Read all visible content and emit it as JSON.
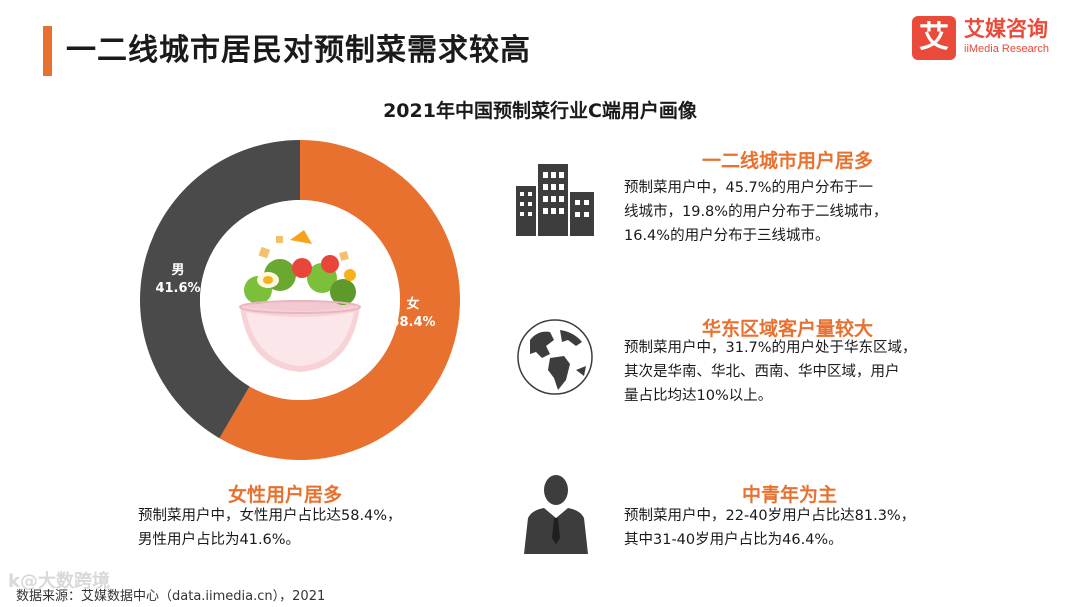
{
  "header": {
    "title": "一二线城市居民对预制菜需求较高"
  },
  "logo": {
    "badge": "艾",
    "name_cn": "艾媒咨询",
    "name_en": "iiMedia Research"
  },
  "colors": {
    "accent": "#e8712f",
    "male": "#4a4a4a",
    "female": "#e8712f",
    "logo": "#e94a3a"
  },
  "chart_data": {
    "type": "pie",
    "title": "2021年中国预制菜行业C端用户画像",
    "categories": [
      "男",
      "女"
    ],
    "values": [
      41.6,
      58.4
    ],
    "value_labels": [
      "41.6%",
      "58.4%"
    ],
    "legend": "none"
  },
  "sections": {
    "city": {
      "icon": "city-buildings-icon",
      "heading": "一二线城市用户居多",
      "lines": [
        "预制菜用户中，45.7%的用户分布于一",
        "线城市，19.8%的用户分布于二线城市，",
        "16.4%的用户分布于三线城市。"
      ]
    },
    "region": {
      "icon": "globe-icon",
      "heading": "华东区域客户量较大",
      "lines": [
        "预制菜用户中，31.7%的用户处于华东区域，",
        "其次是华南、华北、西南、华中区域，用户",
        "量占比均达10%以上。"
      ]
    },
    "gender": {
      "heading": "女性用户居多",
      "lines": [
        "预制菜用户中，女性用户占比达58.4%，",
        "男性用户占比为41.6%。"
      ]
    },
    "age": {
      "icon": "businessman-icon",
      "heading": "中青年为主",
      "lines": [
        "预制菜用户中，22-40岁用户占比达81.3%，",
        "其中31-40岁用户占比为46.4%。"
      ]
    }
  },
  "footer": {
    "source": "数据来源：艾媒数据中心（data.iimedia.cn），2021",
    "watermark": "k@大数跨境"
  }
}
